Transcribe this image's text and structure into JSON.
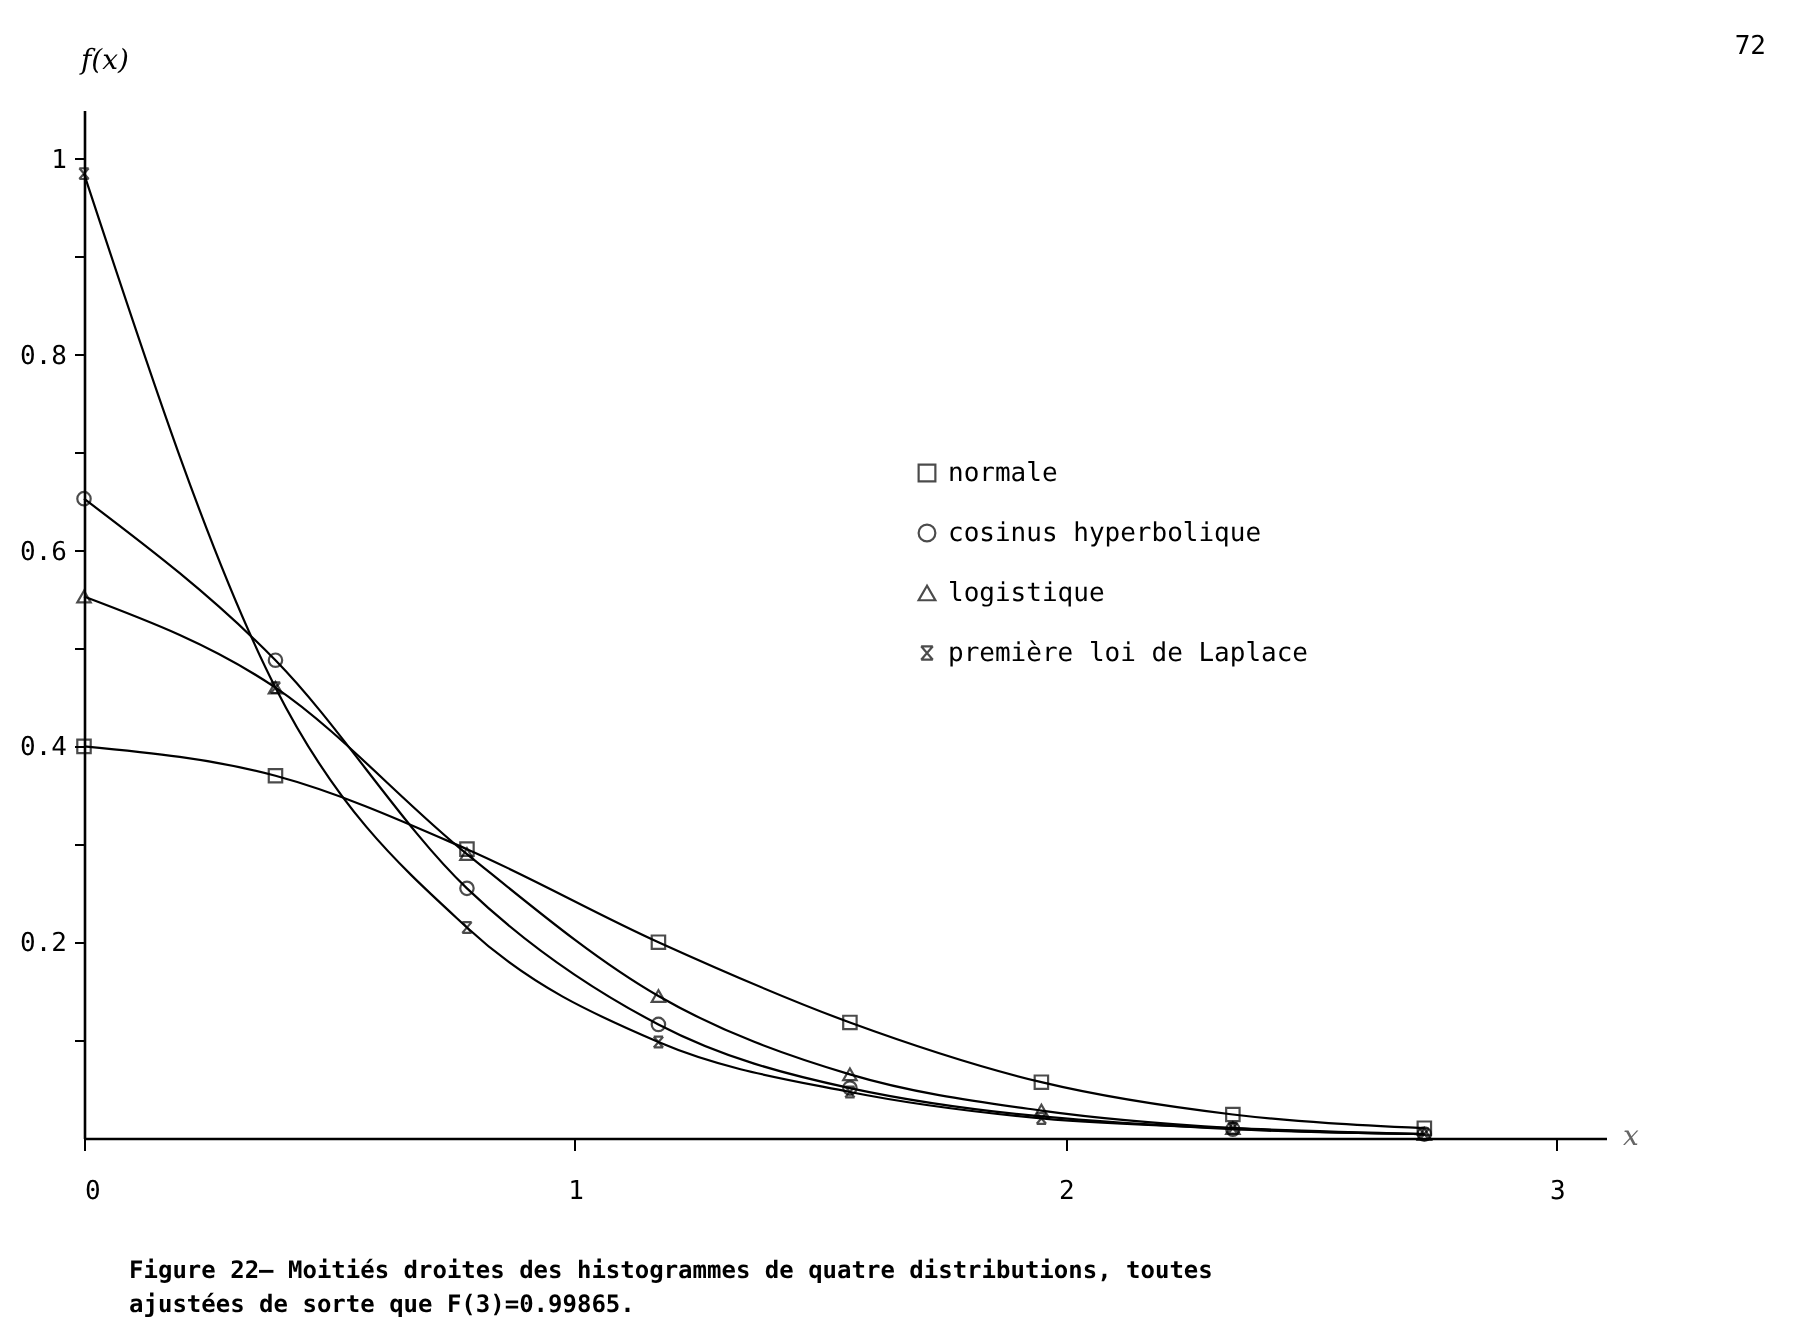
{
  "chart_data": {
    "type": "line",
    "title": "Figure 22— Moitiés droites des histogrammes de quatre distributions, toutes ajustées de sorte que F(3)=0.99865.",
    "xlabel": "x",
    "ylabel": "f(x)",
    "annotations": [
      "72"
    ],
    "x": [
      0,
      0.39,
      0.78,
      1.17,
      1.56,
      1.95,
      2.34,
      2.73
    ],
    "series": [
      {
        "name": "normale",
        "color": "#000000",
        "marker": "square",
        "values": [
          0.4,
          0.37,
          0.295,
          0.2,
          0.118,
          0.057,
          0.024,
          0.01
        ]
      },
      {
        "name": "cosinus hyperbolique",
        "color": "#000000",
        "marker": "circle",
        "values": [
          0.653,
          0.488,
          0.255,
          0.116,
          0.051,
          null,
          0.009,
          0.004
        ]
      },
      {
        "name": "logistique",
        "color": "#000000",
        "marker": "triangle",
        "values": [
          0.553,
          0.46,
          0.29,
          0.145,
          0.065,
          0.028,
          0.01,
          0.004
        ]
      },
      {
        "name": "première loi de Laplace",
        "color": "#000000",
        "marker": "cross",
        "values": [
          0.985,
          0.46,
          0.215,
          0.098,
          0.047,
          0.02,
          0.01,
          0.004
        ]
      }
    ],
    "xlim": [
      0,
      3.1
    ],
    "ylim": [
      0,
      1.05
    ],
    "xticks": [
      0,
      1,
      2,
      3
    ],
    "yticks": [
      {
        "value": 0.1,
        "label": null
      },
      0.2,
      {
        "value": 0.3,
        "label": null
      },
      0.4,
      {
        "value": 0.5,
        "label": null
      },
      0.6,
      {
        "value": 0.7,
        "label": null
      },
      0.8,
      {
        "value": 0.9,
        "label": null
      },
      {
        "value": 1,
        "label": "1"
      }
    ],
    "grid": false,
    "legend": "top right",
    "line_style": "solid"
  }
}
